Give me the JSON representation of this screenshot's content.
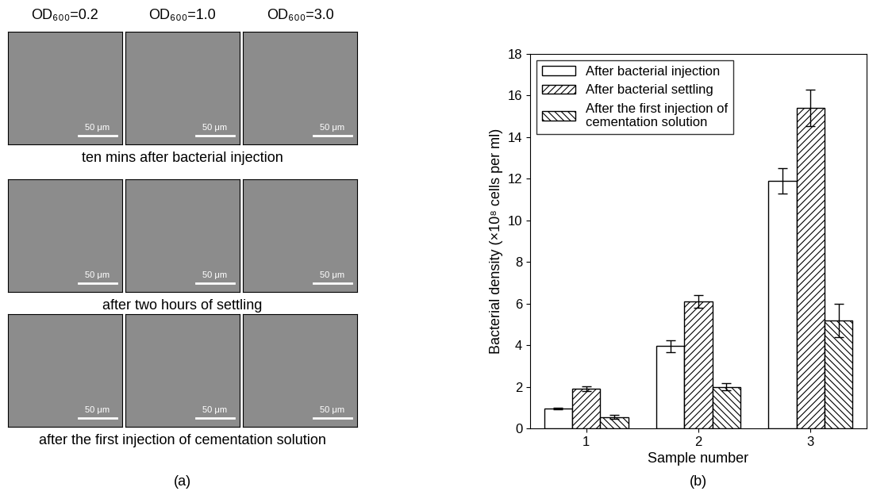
{
  "panel_a": {
    "columns": [
      "OD₆₀₀=0.2",
      "OD₆₀₀=1.0",
      "OD₆₀₀=3.0"
    ],
    "rows": [
      "ten mins after bacterial injection",
      "after two hours of settling",
      "after the first injection of cementation solution"
    ],
    "scale_bar": "50 μm",
    "caption": "(a)"
  },
  "chart_data": {
    "type": "bar",
    "caption": "(b)",
    "x_label": "Sample number",
    "y_label": "Bacterial density (×10⁸ cells per ml)",
    "categories": [
      "1",
      "2",
      "3"
    ],
    "series": [
      {
        "name": "After bacterial injection",
        "color": "#ffffff",
        "values": [
          0.95,
          3.95,
          11.9
        ],
        "errors": [
          0.05,
          0.28,
          0.6
        ]
      },
      {
        "name": "After bacterial settling",
        "color": "#ffffff",
        "values": [
          1.9,
          6.1,
          15.4
        ],
        "errors": [
          0.12,
          0.32,
          0.88
        ]
      },
      {
        "name": "After the first injection of\ncementation solution",
        "color": "#ffffff",
        "values": [
          0.55,
          2.0,
          5.2
        ],
        "errors": [
          0.08,
          0.18,
          0.8
        ]
      }
    ],
    "ylim": [
      0,
      18
    ],
    "yticks": [
      0,
      2,
      4,
      6,
      8,
      10,
      12,
      14,
      16,
      18
    ],
    "legend": "upper left"
  }
}
